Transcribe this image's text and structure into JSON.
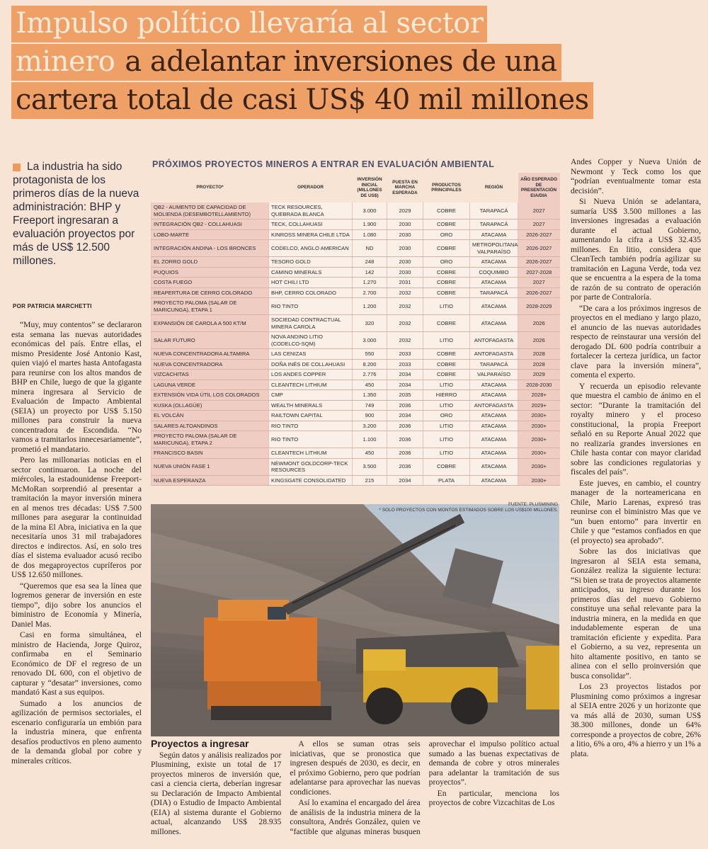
{
  "headline": {
    "line1": "Impulso político llevaría al sector",
    "line2a": "minero",
    "line2b": "a adelantar inversiones de una",
    "line3": "cartera total de casi US$ 40 mil millones"
  },
  "lead": "La industria ha sido protagonista de los primeros días de la nueva administración: BHP y Freeport ingresaran a evaluación proyectos por más de US$ 12.500 millones.",
  "byline": "POR PATRICIA MARCHETTI",
  "left_paragraphs": [
    "“Muy, muy contentos” se declararon esta semana las nuevas autoridades económicas del país. Entre ellas, el mismo Presidente José Antonio Kast, quien viajó el martes hasta Antofagasta para reunirse con los altos mandos de BHP en Chile, luego de que la gigante minera ingresara al Servicio de Evaluación de Impacto Ambiental (SEIA) un proyecto por US$ 5.150 millones para construir la nueva concentradora de Escondida. “No vamos a tramitarlos innecesariamente”, prometió el mandatario.",
    "Pero las millonarias noticias en el sector continuaron. La noche del miércoles, la estadounidense Freeport-McMoRan sorprendió al presentar a tramitación la mayor inversión minera en al menos tres décadas: US$ 7.500 millones para asegurar la continuidad de la mina El Abra, iniciativa en la que necesitaría unos 31 mil trabajadores directos e indirectos. Así, en solo tres días el sistema evaluador acusó recibo de dos megaproyectos cupríferos por US$ 12.650 millones.",
    "“Queremos que esa sea la línea que logremos generar de inversión en este tiempo”, dijo sobre los anuncios el biministro de Economía y Minería, Daniel Mas.",
    "Casi en forma simultánea, el ministro de Hacienda, Jorge Quiroz, confirmaba en el Seminario Económico de DF el regreso de un renovado DL 600, con el objetivo de capturar y “desatar” inversiones, como mandató Kast a sus equipos.",
    "Sumado a los anuncios de agilización de permisos sectoriales, el escenario configuraría un embión para la industria minera, que enfrenta desafíos productivos en pleno aumento de la demanda global por cobre y minerales críticos."
  ],
  "table": {
    "title": "PRÓXIMOS PROYECTOS MINEROS A ENTRAR EN EVALUACIÓN AMBIENTAL",
    "headers": [
      "PROYECTO*",
      "OPERADOR",
      "INVERSIÓN INICIAL (MILLONES DE US$)",
      "PUESTA EN MARCHA ESPERADA",
      "PRODUCTOS PRINCIPALES",
      "REGIÓN",
      "AÑO ESPERADO DE PRESENTACIÓN EIA/DIA"
    ],
    "rows": [
      [
        "QB2 - AUMENTO DE CAPACIDAD DE MOLIENDA (DESEMBOTELLAMIENTO)",
        "TECK RESOURCES, QUEBRADA BLANCA",
        "3.000",
        "2029",
        "COBRE",
        "TARAPACÁ",
        "2027"
      ],
      [
        "INTEGRACIÓN QB2 - COLLAHUASI",
        "TECK, COLLAHUASI",
        "1.900",
        "2030",
        "COBRE",
        "TARAPACÁ",
        "2027"
      ],
      [
        "LOBO-MARTE",
        "KINROSS MINERA CHILE LTDA",
        "1.080",
        "2030",
        "ORO",
        "ATACAMA",
        "2026-2027"
      ],
      [
        "INTEGRACIÓN ANDINA - LOS BRONCES",
        "CODELCO, ANGLO AMERICAN",
        "ND",
        "2030",
        "COBRE",
        "METROPOLITANA VALPARAÍSO",
        "2026-2027"
      ],
      [
        "EL ZORRO GOLD",
        "TESORO GOLD",
        "248",
        "2030",
        "ORO",
        "ATACAMA",
        "2026-2027"
      ],
      [
        "PUQUIOS",
        "CAMINO MINERALS",
        "142",
        "2030",
        "COBRE",
        "COQUIMBO",
        "2027-2028"
      ],
      [
        "COSTA FUEGO",
        "HOT CHILI LTD",
        "1.270",
        "2031",
        "COBRE",
        "ATACAMA",
        "2027"
      ],
      [
        "REAPERTURA DE CERRO COLORADO",
        "BHP, CERRO COLORADO",
        "2.700",
        "2032",
        "COBRE",
        "TARAPACÁ",
        "2026-2027"
      ],
      [
        "PROYECTO PALOMA (SALAR DE MARICUNGA), ETAPA 1",
        "RIO TINTO",
        "1.200",
        "2032",
        "LITIO",
        "ATACAMA",
        "2028-2029"
      ],
      [
        "EXPANSIÓN DE CAROLA A 500 KT/M",
        "SOCIEDAD CONTRACTUAL MINERA CAROLA",
        "320",
        "2032",
        "COBRE",
        "ATACAMA",
        "2026"
      ],
      [
        "SALAR FUTURO",
        "NOVA ANDINO LITIO (CODELCO-SQM)",
        "3.000",
        "2032",
        "LITIO",
        "ANTOFAGASTA",
        "2026"
      ],
      [
        "NUEVA CONCENTRADORA ALTAMIRA",
        "LAS CENIZAS",
        "550",
        "2033",
        "COBRE",
        "ANTOFAGASTA",
        "2028"
      ],
      [
        "NUEVA CONCENTRADORA",
        "DOÑA INÉS DE COLLAHUASI",
        "8.200",
        "2033",
        "COBRE",
        "TARAPACÁ",
        "2028"
      ],
      [
        "VIZCACHITAS",
        "LOS ANDES COPPER",
        "2.776",
        "2034",
        "COBRE",
        "VALPARAÍSO",
        "2029"
      ],
      [
        "LAGUNA VERDE",
        "CLEANTECH LITHIUM",
        "450",
        "2034",
        "LITIO",
        "ATACAMA",
        "2028-2030"
      ],
      [
        "EXTENSIÓN VIDA ÚTIL LOS COLORADOS",
        "CMP",
        "1.350",
        "2035",
        "HIERRO",
        "ATACAMA",
        "2028+"
      ],
      [
        "KUSKA (OLLAGÜE)",
        "WEALTH MINERALS",
        "749",
        "2036",
        "LITIO",
        "ANTOFAGASTA",
        "2029+"
      ],
      [
        "EL VOLCÁN",
        "RAILTOWN CAPITAL",
        "900",
        "2034",
        "ORO",
        "ATACAMA",
        "2030+"
      ],
      [
        "SALARES ALTOANDINOS",
        "RIO TINTO",
        "3.200",
        "2036",
        "LITIO",
        "ATACAMA",
        "2030+"
      ],
      [
        "PROYECTO PALOMA (SALAR DE MARICUNGA), ETAPA 2",
        "RIO TINTO",
        "1.100",
        "2036",
        "LITIO",
        "ATACAMA",
        "2030+"
      ],
      [
        "FRANCISCO BASIN",
        "CLEANTECH LITHIUM",
        "450",
        "2036",
        "LITIO",
        "ATACAMA",
        "2030+"
      ],
      [
        "NUEVA UNIÓN FASE 1",
        "NEWMONT GOLDCORP-TECK RESOURCES",
        "3.500",
        "2036",
        "COBRE",
        "ATACAMA",
        "2030+"
      ],
      [
        "NUEVA ESPERANZA",
        "KINGSGATE CONSOLIDATED",
        "215",
        "2034",
        "PLATA",
        "ATACAMA",
        "2030+"
      ]
    ],
    "source": "FUENTE: PLUSMINING",
    "note": "* SOLO PROYECTOS CON MONTOS ESTIMADOS SOBRE LOS US$100 MILLONES."
  },
  "bottom": {
    "subtitle": "Proyectos a ingresar",
    "paragraphs": [
      "Según datos y análisis realizados por Plusmining, existe un total de 17 proyectos mineros de inversión que, casi a ciencia cierta, deberían ingresar su Declaración de Impacto Ambiental (DIA) o Estudio de Impacto Ambiental (EIA) al sistema durante el Gobierno actual, alcanzando US$ 28.935 millones.",
      "A ellos se suman otras seis iniciativas, que se pronostica que ingresen después de 2030, es decir, en el próximo Gobierno, pero que podrían adelantarse para aprovechar las nuevas condiciones.",
      "Así lo examina el encargado del área de análisis de la industria minera de la consultora, Andrés González, quien ve “factible que algunas mineras busquen aprovechar el impulso político actual sumado a las buenas expectativas de demanda de cobre y otros minerales para adelantar la tramitación de sus proyectos”.",
      "En particular, menciona los proyectos de cobre Vizcachitas de Los"
    ]
  },
  "right_paragraphs": [
    "Andes Copper y Nueva Unión de Newmont y Teck como los que “podrían eventualmente tomar esta decisión”.",
    "Si Nueva Unión se adelantara, sumaría US$ 3.500 millones a las inversiones ingresadas a evaluación durante el actual Gobierno, aumentando la cifra a US$ 32.435 millones. En litio, considera que CleanTech también podría agilizar su tramitación en Laguna Verde, toda vez que se encuentra a la espera de la toma de razón de su contrato de operación por parte de Contraloría.",
    "“De cara a los próximos ingresos de proyectos en el mediano y largo plazo, el anuncio de las nuevas autoridades respecto de reinstaurar una versión del derogado DL 600 podría contribuir a fortalecer la certeza jurídica, un factor clave para la inversión minera”, comenta el experto.",
    "Y recuerda un episodio relevante que muestra el cambio de ánimo en el sector: “Durante la tramitación del royalty minero y el proceso constitucional, la propia Freeport señaló en su Reporte Anual 2022 que no realizaría grandes inversiones en Chile hasta contar con mayor claridad sobre las condiciones regulatorias y fiscales del país”.",
    "Este jueves, en cambio, el country manager de la norteamericana en Chile, Mario Larenas, expresó tras reunirse con el biministro Mas que ve “un buen entorno” para invertir en Chile y que “estamos confiados en que (el proyecto) sea aprobado”.",
    "Sobre las dos iniciativas que ingresaron al SEIA esta semana, González realiza la siguiente lectura: “Si bien se trata de proyectos altamente anticipados, su ingreso durante los primeros días del nuevo Gobierno constituye una señal relevante para la industria minera, en la medida en que indudablemente esperan de una tramitación eficiente y expedita. Para el Gobierno, a su vez, representa un hito altamente positivo, en tanto se alinea con el sello proinversión que busca consolidar”.",
    "Los 23 proyectos listados por Plusmining como próximos a ingresar al SEIA entre 2026 y un horizonte que va más allá de 2030, suman US$ 38.300 millones, donde un 64% corresponde a proyectos de cobre, 26% a litio, 6% a oro, 4% a hierro y un 1% a plata."
  ]
}
